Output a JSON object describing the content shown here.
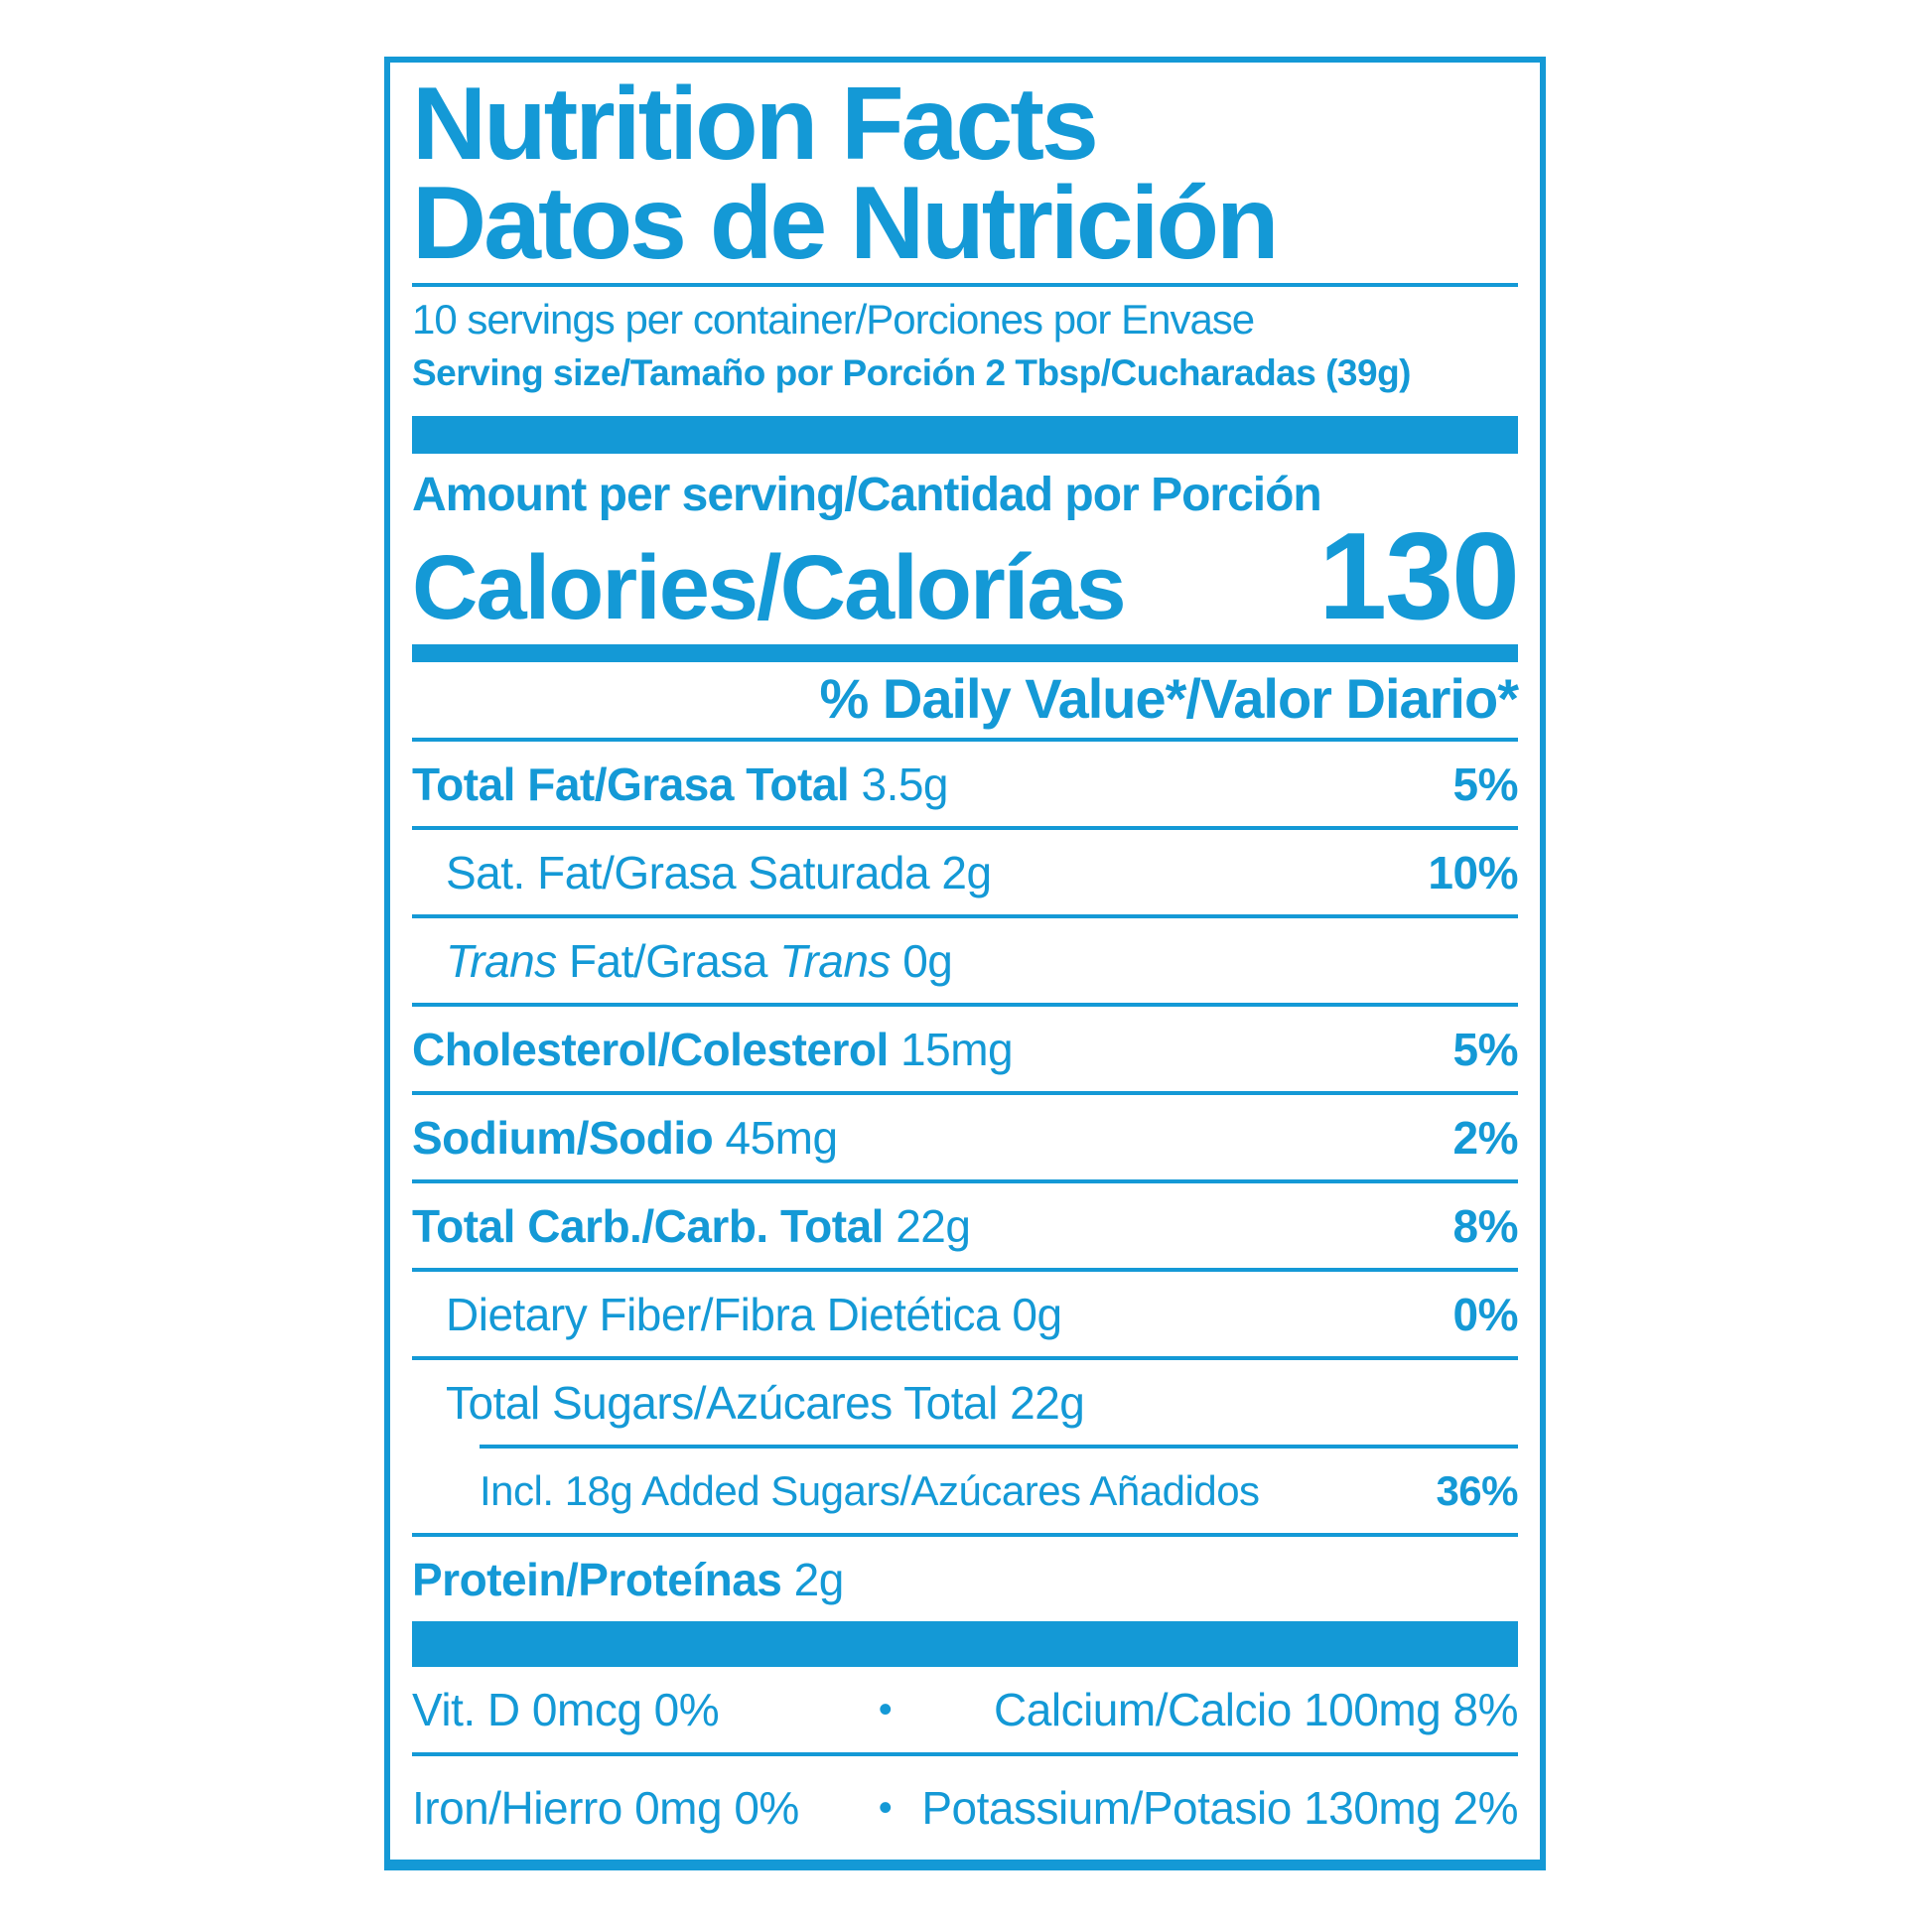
{
  "label": {
    "accent_color": "#1499d6",
    "title_line1": "Nutrition Facts",
    "title_line2": "Datos de Nutrición",
    "servings_per_container": "10 servings per container/Porciones por Envase",
    "serving_size": "Serving size/Tamaño por Porción 2 Tbsp/Cucharadas (39g)",
    "amount_per_serving": "Amount per serving/Cantidad por Porción",
    "calories_label": "Calories/Calorías",
    "calories_value": "130",
    "daily_value_header": "% Daily Value*/Valor Diario*",
    "separator": "•",
    "rows": [
      {
        "b": "Total Fat/Grasa Total",
        "r": " 3.5g",
        "pct": "5%"
      },
      {
        "r": "Sat. Fat/Grasa Saturada 2g",
        "pct": "10%"
      },
      {
        "i1": "Trans",
        "m": " Fat/Grasa ",
        "i2": "Trans",
        "r": " 0g",
        "pct": ""
      },
      {
        "b": "Cholesterol/Colesterol",
        "r": " 15mg",
        "pct": "5%"
      },
      {
        "b": "Sodium/Sodio",
        "r": " 45mg",
        "pct": "2%"
      },
      {
        "b": "Total Carb./Carb. Total",
        "r": " 22g",
        "pct": "8%"
      },
      {
        "r": "Dietary Fiber/Fibra Dietética 0g",
        "pct": "0%"
      },
      {
        "r": "Total Sugars/Azúcares Total 22g",
        "pct": ""
      },
      {
        "r": "Incl. 18g Added Sugars/Azúcares Añadidos",
        "pct": "36%"
      },
      {
        "b": "Protein/Proteínas",
        "r": " 2g",
        "pct": ""
      }
    ],
    "footer_rows": [
      {
        "left": "Vit. D 0mcg 0%",
        "right": "Calcium/Calcio 100mg 8%"
      },
      {
        "left": "Iron/Hierro 0mg 0%",
        "right": "Potassium/Potasio 130mg 2%"
      }
    ]
  }
}
